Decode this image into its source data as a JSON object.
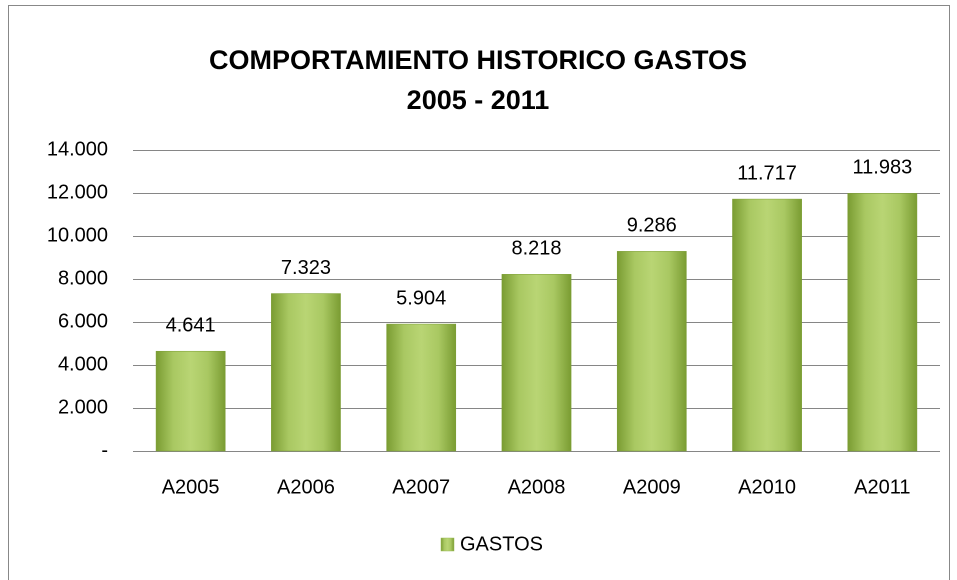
{
  "chart_data": {
    "type": "bar",
    "title": "COMPORTAMIENTO HISTORICO GASTOS",
    "subtitle": "2005 - 2011",
    "categories": [
      "A2005",
      "A2006",
      "A2007",
      "A2008",
      "A2009",
      "A2010",
      "A2011"
    ],
    "series": [
      {
        "name": "GASTOS",
        "color": "#9bbb59",
        "values": [
          4641,
          7323,
          5904,
          8218,
          9286,
          11717,
          11983
        ],
        "value_labels": [
          "4.641",
          "7.323",
          "5.904",
          "8.218",
          "9.286",
          "11.717",
          "11.983"
        ]
      }
    ],
    "ylim": [
      0,
      14000
    ],
    "yticks": [
      {
        "value": 0,
        "label": "-"
      },
      {
        "value": 2000,
        "label": "2.000"
      },
      {
        "value": 4000,
        "label": "4.000"
      },
      {
        "value": 6000,
        "label": "6.000"
      },
      {
        "value": 8000,
        "label": "8.000"
      },
      {
        "value": 10000,
        "label": "10.000"
      },
      {
        "value": 12000,
        "label": "12.000"
      },
      {
        "value": 14000,
        "label": "14.000"
      }
    ],
    "grid": true,
    "legend": "bottom"
  }
}
